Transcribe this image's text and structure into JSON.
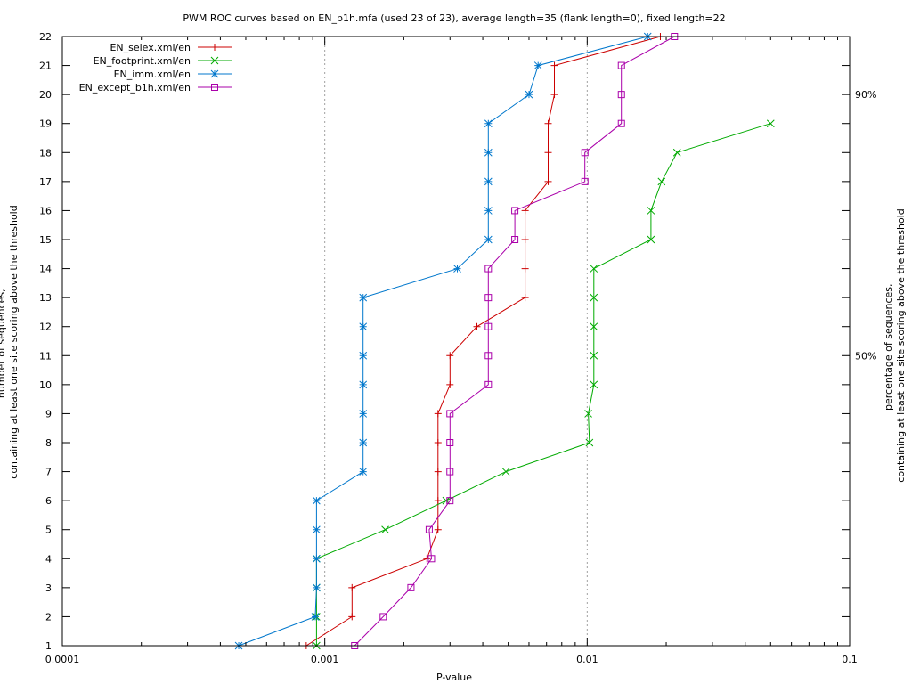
{
  "chart_data": {
    "type": "line",
    "title": "PWM ROC curves based on EN_b1h.mfa (used 23 of 23), average length=35 (flank length=0), fixed length=22",
    "xlabel": "P-value",
    "ylabel_line1": "number of sequences,",
    "ylabel_line2": "containing at least one site scoring above the threshold",
    "y2label_line1": "percentage of sequences,",
    "y2label_line2": "containing at least one site scoring above the threshold",
    "x_scale": "log",
    "xlim": [
      0.0001,
      0.1
    ],
    "ylim": [
      1,
      22
    ],
    "grid": true,
    "legend_position": "top-left",
    "x_ticks": [
      {
        "value": 0.0001,
        "label": "0.0001"
      },
      {
        "value": 0.001,
        "label": "0.001"
      },
      {
        "value": 0.01,
        "label": "0.01"
      },
      {
        "value": 0.1,
        "label": "0.1"
      }
    ],
    "y_ticks": [
      1,
      2,
      3,
      4,
      5,
      6,
      7,
      8,
      9,
      10,
      11,
      12,
      13,
      14,
      15,
      16,
      17,
      18,
      19,
      20,
      21,
      22
    ],
    "y2_ticks": [
      {
        "value": 20,
        "label": "90%"
      },
      {
        "value": 11,
        "label": "50%"
      }
    ],
    "series": [
      {
        "name": "EN_selex.xml/en",
        "color": "#cc0000",
        "marker": "plus",
        "points": [
          [
            0.00085,
            1
          ],
          [
            0.00127,
            2
          ],
          [
            0.00127,
            3
          ],
          [
            0.00245,
            4
          ],
          [
            0.0027,
            5
          ],
          [
            0.0027,
            6
          ],
          [
            0.0027,
            7
          ],
          [
            0.0027,
            8
          ],
          [
            0.0027,
            9
          ],
          [
            0.003,
            10
          ],
          [
            0.003,
            11
          ],
          [
            0.0038,
            12
          ],
          [
            0.0058,
            13
          ],
          [
            0.0058,
            14
          ],
          [
            0.0058,
            15
          ],
          [
            0.0058,
            16
          ],
          [
            0.0071,
            17
          ],
          [
            0.0071,
            18
          ],
          [
            0.0071,
            19
          ],
          [
            0.0075,
            20
          ],
          [
            0.0075,
            21
          ],
          [
            0.019,
            22
          ]
        ]
      },
      {
        "name": "EN_footprint.xml/en",
        "color": "#00aa00",
        "marker": "cross",
        "points": [
          [
            0.00093,
            1
          ],
          [
            0.00093,
            2
          ],
          [
            0.00093,
            3
          ],
          [
            0.00093,
            4
          ],
          [
            0.0017,
            5
          ],
          [
            0.0029,
            6
          ],
          [
            0.0049,
            7
          ],
          [
            0.0102,
            8
          ],
          [
            0.0101,
            9
          ],
          [
            0.0106,
            10
          ],
          [
            0.0106,
            11
          ],
          [
            0.0106,
            12
          ],
          [
            0.0106,
            13
          ],
          [
            0.0106,
            14
          ],
          [
            0.0175,
            15
          ],
          [
            0.0175,
            16
          ],
          [
            0.0192,
            17
          ],
          [
            0.022,
            18
          ],
          [
            0.05,
            19
          ]
        ]
      },
      {
        "name": "EN_imm.xml/en",
        "color": "#0077cc",
        "marker": "star",
        "points": [
          [
            0.00047,
            1
          ],
          [
            0.00092,
            2
          ],
          [
            0.00093,
            3
          ],
          [
            0.00093,
            4
          ],
          [
            0.00093,
            5
          ],
          [
            0.00093,
            6
          ],
          [
            0.0014,
            7
          ],
          [
            0.0014,
            8
          ],
          [
            0.0014,
            9
          ],
          [
            0.0014,
            10
          ],
          [
            0.0014,
            11
          ],
          [
            0.0014,
            12
          ],
          [
            0.0014,
            13
          ],
          [
            0.0032,
            14
          ],
          [
            0.0042,
            15
          ],
          [
            0.0042,
            16
          ],
          [
            0.0042,
            17
          ],
          [
            0.0042,
            18
          ],
          [
            0.0042,
            19
          ],
          [
            0.006,
            20
          ],
          [
            0.0065,
            21
          ],
          [
            0.017,
            22
          ]
        ]
      },
      {
        "name": "EN_except_b1h.xml/en",
        "color": "#aa00aa",
        "marker": "square",
        "points": [
          [
            0.0013,
            1
          ],
          [
            0.00167,
            2
          ],
          [
            0.00213,
            3
          ],
          [
            0.00255,
            4
          ],
          [
            0.0025,
            5
          ],
          [
            0.003,
            6
          ],
          [
            0.003,
            7
          ],
          [
            0.003,
            8
          ],
          [
            0.003,
            9
          ],
          [
            0.0042,
            10
          ],
          [
            0.0042,
            11
          ],
          [
            0.0042,
            12
          ],
          [
            0.0042,
            13
          ],
          [
            0.0042,
            14
          ],
          [
            0.0053,
            15
          ],
          [
            0.0053,
            16
          ],
          [
            0.0098,
            17
          ],
          [
            0.0098,
            18
          ],
          [
            0.0135,
            19
          ],
          [
            0.0135,
            20
          ],
          [
            0.0135,
            21
          ],
          [
            0.0215,
            22
          ]
        ]
      }
    ]
  }
}
